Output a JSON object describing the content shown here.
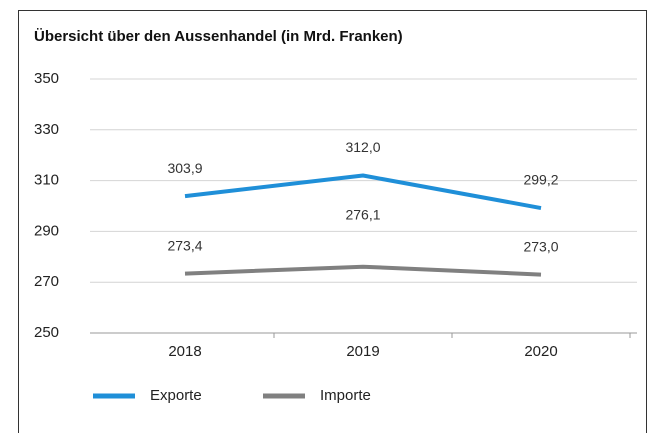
{
  "chart_data": {
    "type": "line",
    "title": "Übersicht über den Aussenhandel (in Mrd. Franken)",
    "categories": [
      "2018",
      "2019",
      "2020"
    ],
    "series": [
      {
        "name": "Exporte",
        "color": "#1f8fd8",
        "values": [
          303.9,
          312.0,
          299.2
        ],
        "value_labels": [
          "303,9",
          "312,0",
          "299,2"
        ]
      },
      {
        "name": "Importe",
        "color": "#808080",
        "values": [
          273.4,
          276.1,
          273.0
        ],
        "value_labels": [
          "273,4",
          "276,1",
          "273,0"
        ]
      }
    ],
    "ylim": [
      250,
      350
    ],
    "yticks": [
      250,
      270,
      290,
      310,
      330,
      350
    ],
    "grid": true
  }
}
